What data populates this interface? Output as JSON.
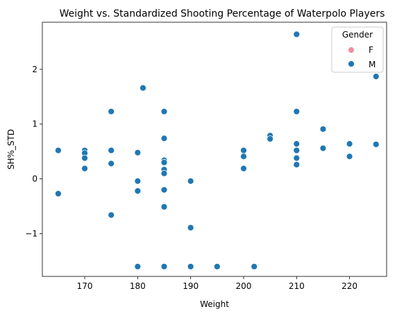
{
  "chart_data": {
    "type": "scatter",
    "title": "Weight vs. Standardized Shooting Percentage of Waterpolo Players",
    "xlabel": "Weight",
    "ylabel": "SH%_STD",
    "xlim": [
      162.0,
      227.0
    ],
    "ylim": [
      -1.78,
      2.86
    ],
    "xticks": [
      170,
      180,
      190,
      200,
      210,
      220
    ],
    "yticks": [
      -1,
      0,
      1,
      2
    ],
    "ytick_labels": [
      "−1",
      "0",
      "1",
      "2"
    ],
    "grid": false,
    "legend": {
      "title": "Gender",
      "placement": "top-right",
      "entries": [
        {
          "label": "F",
          "color": "#f38ea4"
        },
        {
          "label": "M",
          "color": "#1f77b4"
        }
      ]
    },
    "series": [
      {
        "name": "F",
        "color": "#f38ea4",
        "points": []
      },
      {
        "name": "M",
        "color": "#1f77b4",
        "points": [
          [
            165,
            0.52
          ],
          [
            165,
            -0.27
          ],
          [
            170,
            0.52
          ],
          [
            170,
            0.47
          ],
          [
            170,
            0.38
          ],
          [
            170,
            0.19
          ],
          [
            175,
            1.23
          ],
          [
            175,
            0.52
          ],
          [
            175,
            0.28
          ],
          [
            175,
            -0.66
          ],
          [
            180,
            0.48
          ],
          [
            180,
            -0.04
          ],
          [
            180,
            -0.22
          ],
          [
            180,
            -1.6
          ],
          [
            181,
            1.66
          ],
          [
            185,
            1.23
          ],
          [
            185,
            0.74
          ],
          [
            185,
            0.34
          ],
          [
            185,
            0.3
          ],
          [
            185,
            0.17
          ],
          [
            185,
            0.1
          ],
          [
            185,
            -0.2
          ],
          [
            185,
            -0.51
          ],
          [
            185,
            -1.6
          ],
          [
            190,
            -0.04
          ],
          [
            190,
            -0.89
          ],
          [
            190,
            -1.6
          ],
          [
            195,
            -1.6
          ],
          [
            200,
            0.52
          ],
          [
            200,
            0.41
          ],
          [
            200,
            0.19
          ],
          [
            202,
            -1.6
          ],
          [
            205,
            0.79
          ],
          [
            205,
            0.73
          ],
          [
            210,
            2.64
          ],
          [
            210,
            1.23
          ],
          [
            210,
            0.64
          ],
          [
            210,
            0.52
          ],
          [
            210,
            0.38
          ],
          [
            210,
            0.26
          ],
          [
            215,
            0.91
          ],
          [
            215,
            0.56
          ],
          [
            220,
            0.64
          ],
          [
            220,
            0.41
          ],
          [
            225,
            1.87
          ],
          [
            225,
            0.63
          ]
        ]
      }
    ]
  }
}
